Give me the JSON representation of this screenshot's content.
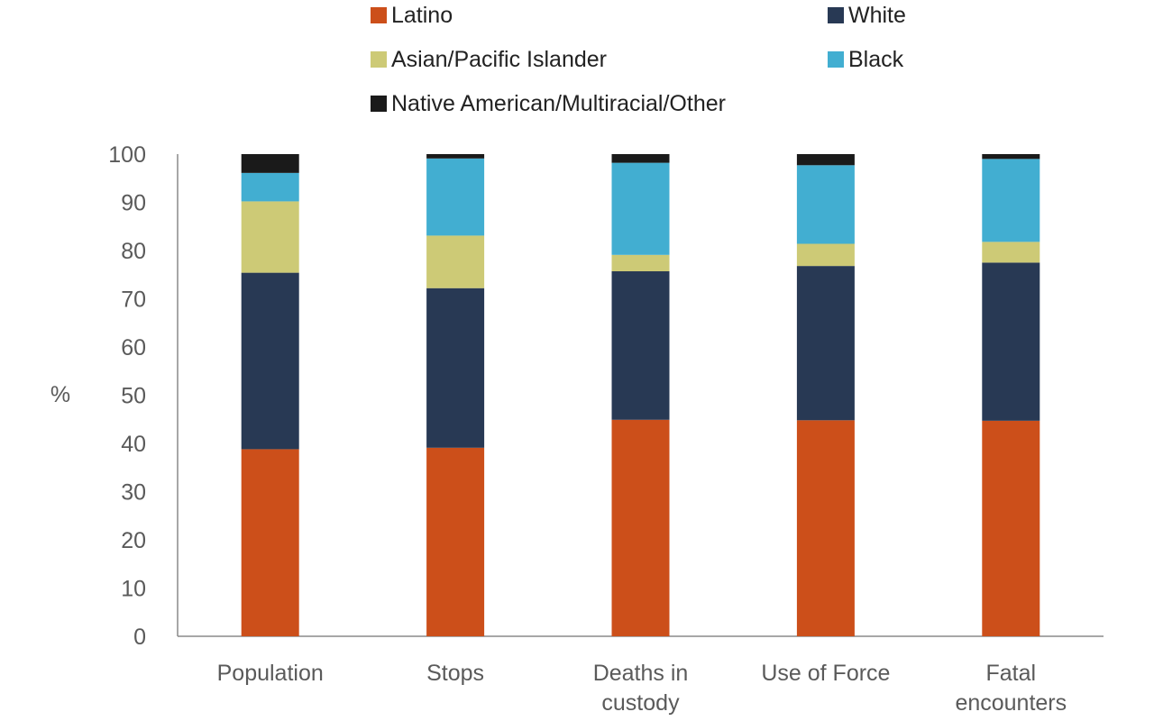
{
  "chart_data": {
    "type": "bar",
    "stacked": true,
    "categories": [
      [
        "Population"
      ],
      [
        "Stops"
      ],
      [
        "Deaths in",
        "custody"
      ],
      [
        "Use of Force"
      ],
      [
        "Fatal",
        "encounters"
      ]
    ],
    "series": [
      {
        "name": "Latino",
        "color": "#cc4f1a",
        "values": [
          38.8,
          39.1,
          44.9,
          44.8,
          44.7
        ]
      },
      {
        "name": "White",
        "color": "#283954",
        "values": [
          36.6,
          33.1,
          30.8,
          32.0,
          32.8
        ]
      },
      {
        "name": "Asian/Pacific Islander",
        "color": "#cdca76",
        "values": [
          14.8,
          10.9,
          3.4,
          4.6,
          4.3
        ]
      },
      {
        "name": "Black",
        "color": "#42aed1",
        "values": [
          5.9,
          16.0,
          19.1,
          16.3,
          17.2
        ]
      },
      {
        "name": "Native American/Multiracial/Other",
        "color": "#1a1a1a",
        "values": [
          3.9,
          0.9,
          1.8,
          2.3,
          1.0
        ]
      }
    ],
    "ylabel": "%",
    "ylim": [
      0,
      100
    ],
    "yticks": [
      0,
      10,
      20,
      30,
      40,
      50,
      60,
      70,
      80,
      90,
      100
    ],
    "grid": false,
    "legend_position": "top"
  }
}
